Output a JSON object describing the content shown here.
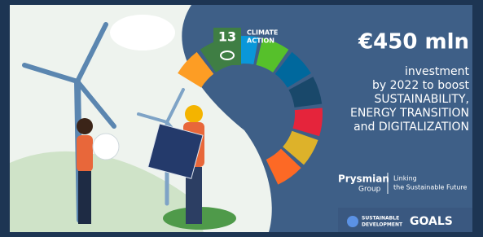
{
  "badge": {
    "number": "13",
    "line1": "CLIMATE",
    "line2": "ACTION"
  },
  "headline": "€450 mln",
  "body": [
    "investment",
    "by 2022 to boost",
    "SUSTAINABILITY,",
    "ENERGY TRANSITION",
    "and DIGITALIZATION"
  ],
  "brand": {
    "name": "Prysmian",
    "group": "Group",
    "tagline1": "Linking",
    "tagline2": "the Sustainable Future"
  },
  "sdg": {
    "line1": "SUSTAINABLE",
    "line2": "DEVELOPMENT",
    "goals": "GOALS"
  }
}
